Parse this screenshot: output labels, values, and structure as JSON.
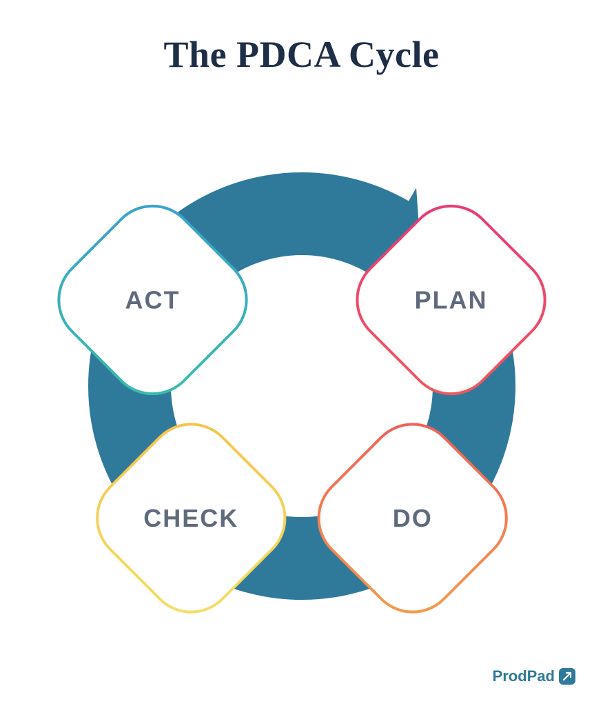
{
  "title": {
    "text": "The PDCA Cycle",
    "color": "#1d2e46",
    "fontsize": 54
  },
  "diagram": {
    "type": "cycle",
    "background_color": "#ffffff",
    "arrow_fill": "#2f7a9a",
    "node_label_color": "#5f6a7d",
    "node_label_fontsize": 36,
    "node_stroke_width": 4,
    "node_size": 230,
    "node_corner_radius": 64,
    "ring_radius": 250,
    "nodes": [
      {
        "id": "plan",
        "label": "PLAN",
        "angle_deg": -30,
        "grad_from": "#e6397b",
        "grad_to": "#f15a5a"
      },
      {
        "id": "do",
        "label": "DO",
        "angle_deg": 50,
        "grad_from": "#f15a5a",
        "grad_to": "#f5a04b"
      },
      {
        "id": "check",
        "label": "CHECK",
        "angle_deg": 130,
        "grad_from": "#f5c24b",
        "grad_to": "#f5e06a"
      },
      {
        "id": "act",
        "label": "ACT",
        "angle_deg": 210,
        "grad_from": "#3aa0d0",
        "grad_to": "#3bbfa8"
      }
    ],
    "arrows": [
      {
        "from_deg": 230,
        "to_deg": 300
      },
      {
        "from_deg": -10,
        "to_deg": 35
      },
      {
        "from_deg": 68,
        "to_deg": 118
      },
      {
        "from_deg": 150,
        "to_deg": 200
      }
    ]
  },
  "footer": {
    "brand": "ProdPad",
    "brand_color": "#2f7a9a",
    "mark_bg": "#2f7a9a",
    "mark_icon_color": "#ffffff",
    "fontsize": 22
  }
}
